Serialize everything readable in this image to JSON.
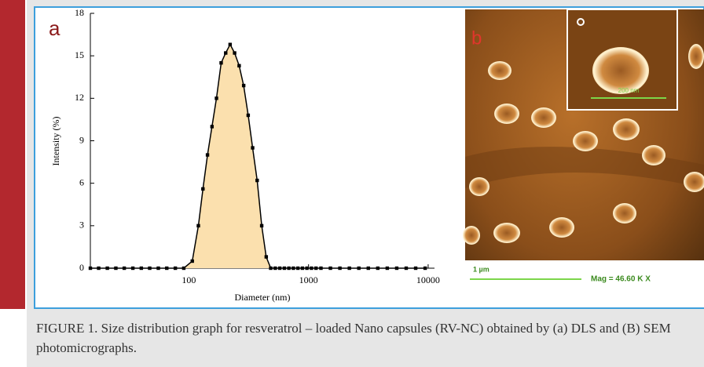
{
  "chart_data": {
    "type": "line",
    "panel_label": "a",
    "x_label": "Diameter (nm)",
    "y_label": "Intensity (%)",
    "x": [
      15,
      17.6,
      20.8,
      24.5,
      28.8,
      34,
      40,
      47,
      55.5,
      65.3,
      77,
      90.6,
      106.7,
      120,
      131,
      143,
      156,
      170,
      186,
      203,
      221,
      241,
      263,
      287,
      313,
      341,
      372,
      406,
      443,
      483,
      527,
      575,
      628,
      685,
      747,
      815,
      889,
      970,
      1058,
      1155,
      1270,
      1524,
      1829,
      2195,
      2634,
      3161,
      3793,
      4552,
      5462,
      6554,
      7865,
      9438
    ],
    "values": [
      0,
      0,
      0,
      0,
      0,
      0,
      0,
      0,
      0,
      0,
      0,
      0,
      0.5,
      3,
      5.6,
      8,
      10,
      12,
      14.5,
      15.2,
      15.8,
      15.2,
      14.3,
      12.9,
      10.8,
      8.5,
      6.2,
      3.0,
      0.8,
      0,
      0,
      0,
      0,
      0,
      0,
      0,
      0,
      0,
      0,
      0,
      0,
      0,
      0,
      0,
      0,
      0,
      0,
      0,
      0,
      0,
      0,
      0
    ],
    "color": "#000000",
    "fill_color": "#fbe0ae",
    "log_x": true,
    "xlim": [
      15,
      11300
    ],
    "ylim": [
      0,
      18
    ],
    "xticks": [
      100,
      1000,
      10000
    ],
    "yticks": [
      0,
      3,
      6,
      9,
      12,
      15,
      18
    ]
  },
  "panel_b": {
    "label": "b",
    "inset_scale": "200 nm",
    "scale": "1 µm",
    "magnification": "Mag = 46.60 K X"
  },
  "caption": "FIGURE 1. Size distribution graph for resveratrol – loaded Nano capsules (RV-NC) obtained by (a) DLS and (B) SEM photomicrographs."
}
